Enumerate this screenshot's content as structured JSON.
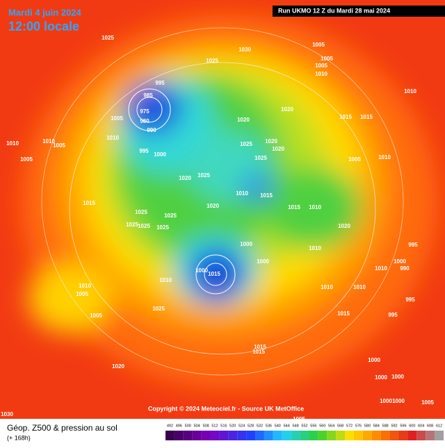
{
  "header": {
    "date": "Mardi 4 juin 2024",
    "time": "12:00 locale",
    "run": "Run UKMO 12 Z du Mardi 28 mai 2024"
  },
  "map": {
    "pressure_labels": [
      1025,
      1030,
      1005,
      1005,
      1005,
      1010,
      1025,
      995,
      985,
      975,
      980,
      990,
      1005,
      1010,
      1010,
      1010,
      1005,
      1005,
      995,
      1000,
      1020,
      1020,
      1010,
      1015,
      1015,
      1020,
      1020,
      1025,
      1025,
      1005,
      1010,
      1020,
      1025,
      1015,
      1010,
      1015,
      1015,
      1010,
      1020,
      1025,
      1025,
      1025,
      1025,
      1025,
      1020,
      1000,
      995,
      1000,
      990,
      1010,
      1000,
      1000,
      1015,
      1010,
      1010,
      1010,
      1005,
      1010,
      1010,
      995,
      1005,
      1025,
      1015,
      995,
      1015,
      1015,
      1000,
      1020,
      1000,
      1000,
      1000,
      1000,
      1005,
      1005,
      1030
    ]
  },
  "footer": {
    "copyright": "Copyright © 2024 Meteociel.fr - Source UK MetOffice",
    "title": "Géop. Z500 & pression au sol",
    "lead": "(+ 168h)"
  },
  "colorbar": {
    "labels": [
      492,
      496,
      500,
      504,
      508,
      512,
      516,
      520,
      524,
      528,
      532,
      536,
      540,
      544,
      548,
      552,
      556,
      560,
      564,
      568,
      572,
      576,
      580,
      584,
      588,
      592,
      596,
      600,
      604,
      608,
      612
    ]
  }
}
